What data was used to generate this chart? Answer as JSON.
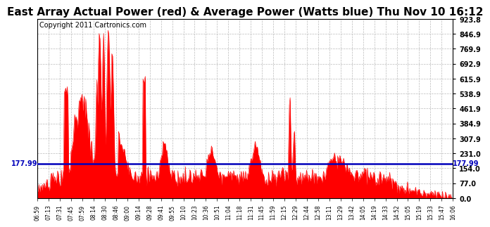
{
  "title": "East Array Actual Power (red) & Average Power (Watts blue) Thu Nov 10 16:12",
  "copyright": "Copyright 2011 Cartronics.com",
  "avg_power": 177.99,
  "ymax": 923.8,
  "yticks": [
    0.0,
    77.0,
    154.0,
    231.0,
    307.9,
    384.9,
    461.9,
    538.9,
    615.9,
    692.9,
    769.9,
    846.9,
    923.8
  ],
  "xtick_labels": [
    "06:59",
    "07:13",
    "07:31",
    "07:45",
    "07:59",
    "08:14",
    "08:30",
    "08:46",
    "09:00",
    "09:14",
    "09:28",
    "09:41",
    "09:55",
    "10:10",
    "10:23",
    "10:36",
    "10:51",
    "11:04",
    "11:18",
    "11:31",
    "11:45",
    "11:59",
    "12:15",
    "12:29",
    "12:44",
    "12:58",
    "13:11",
    "13:29",
    "13:42",
    "14:05",
    "14:19",
    "14:33",
    "14:52",
    "15:05",
    "15:19",
    "15:33",
    "15:47",
    "16:06"
  ],
  "bg_color": "#ffffff",
  "plot_bg_color": "#ffffff",
  "grid_color": "#bbbbbb",
  "line_color": "#0000bb",
  "fill_color": "#ff0000",
  "title_fontsize": 11,
  "copyright_fontsize": 7,
  "avg_label_fontsize": 7
}
